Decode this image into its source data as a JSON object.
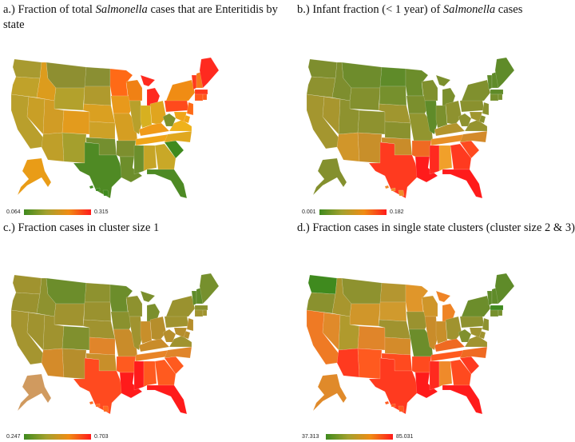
{
  "panels": [
    {
      "id": "a",
      "label": "a.)",
      "title_before": " Fraction of total ",
      "title_italic": "Salmonella",
      "title_after": " cases that are Enteritidis by state",
      "legend_min": "0.064",
      "legend_max": "0.315",
      "colors": {
        "WA": "#a89a30",
        "OR": "#c0a22a",
        "CA": "#b99f2c",
        "NV": "#c99f26",
        "ID": "#dc9c1d",
        "MT": "#8e8f31",
        "WY": "#b3a12c",
        "UT": "#d19c25",
        "AZ": "#bf9f29",
        "NM": "#a59f2d",
        "CO": "#e39b1d",
        "ND": "#8a8f33",
        "SD": "#b09a2d",
        "NE": "#daa021",
        "KS": "#cda127",
        "OK": "#748f2f",
        "TX": "#4f8a24",
        "MN": "#ff6a16",
        "IA": "#e8991b",
        "MO": "#d59e22",
        "AR": "#7d8f2e",
        "LA": "#6d8e2b",
        "WI": "#f08114",
        "IL": "#b8a02b",
        "MI": "#ff2a1f",
        "IN": "#d7b020",
        "OH": "#e0a51f",
        "KY": "#f09a18",
        "TN": "#f0a518",
        "MS": "#6c8f2c",
        "AL": "#c6a527",
        "GA": "#c9a827",
        "FL": "#4d8a24",
        "SC": "#3f8a1e",
        "NC": "#e0a81f",
        "VA": "#efb21b",
        "WV": "#7d912c",
        "PA": "#ff4a1c",
        "NY": "#f08c14",
        "VT": "#ff3a1c",
        "NH": "#f6781a",
        "ME": "#ff2a1f",
        "MA": "#ff3a1c",
        "CT": "#ff5a1a",
        "RI": "#ff5a1a",
        "NJ": "#ff6a16",
        "DE": "#f0a518",
        "MD": "#f0a518",
        "AK": "#e99c17",
        "HI": "#3f8a1e"
      }
    },
    {
      "id": "b",
      "label": "b.)",
      "title_before": "  Infant fraction (< 1 year) of ",
      "title_italic": "Salmonella",
      "title_after": " cases",
      "legend_min": "0.001",
      "legend_max": "0.182",
      "colors": {
        "WA": "#7e8e2e",
        "OR": "#8e922f",
        "CA": "#a4962f",
        "NV": "#a8962e",
        "ID": "#7e8e2e",
        "MT": "#6e8c2c",
        "WY": "#83902e",
        "UT": "#8e922f",
        "AZ": "#d1962a",
        "NM": "#c88f2a",
        "CO": "#8e922f",
        "ND": "#5f8b29",
        "SD": "#76902d",
        "NE": "#a0962f",
        "KS": "#8a912e",
        "OK": "#c98c2a",
        "TX": "#ff3a1f",
        "MN": "#6c8d2b",
        "IA": "#7b8f2d",
        "MO": "#92952f",
        "AR": "#ef6a22",
        "LA": "#ff1b1b",
        "WI": "#80902e",
        "IL": "#5f8b29",
        "MI": "#7b8f2d",
        "IN": "#7b902d",
        "OH": "#8e922f",
        "KY": "#b3942c",
        "TN": "#e88f26",
        "MS": "#ff2a1f",
        "AL": "#f1a02a",
        "GA": "#ff3a1f",
        "FL": "#ff1b1b",
        "SC": "#ff4a1f",
        "NC": "#d38a2a",
        "VA": "#95932f",
        "WV": "#8e922f",
        "PA": "#8a912e",
        "NY": "#80902e",
        "VT": "#5f8b29",
        "NH": "#5f8b29",
        "ME": "#5f8b29",
        "MA": "#5f8b29",
        "CT": "#76902d",
        "RI": "#76902d",
        "NJ": "#8a912e",
        "DE": "#8a912e",
        "MD": "#a0962f",
        "AK": "#84902e",
        "HI": "#ef8a2a"
      }
    },
    {
      "id": "c",
      "label": "c.)",
      "title_before": " Fraction cases in cluster size 1",
      "title_italic": "",
      "title_after": "",
      "legend_min": "0.247",
      "legend_max": "0.703",
      "colors": {
        "WA": "#a0932f",
        "OR": "#9a922f",
        "CA": "#a59530",
        "NV": "#a0932f",
        "ID": "#8e922f",
        "MT": "#6c8d2b",
        "WY": "#a0932f",
        "UT": "#a0932f",
        "AZ": "#d48b2a",
        "NM": "#b68e2c",
        "CO": "#80902e",
        "ND": "#8e922f",
        "SD": "#9a922f",
        "NE": "#a0932f",
        "KS": "#e0852a",
        "OK": "#c88f2a",
        "TX": "#ff4a1f",
        "MN": "#6c8d2b",
        "IA": "#8a912e",
        "MO": "#c98c2a",
        "AR": "#ff5a1f",
        "LA": "#ff1b1b",
        "WI": "#8e922f",
        "IL": "#a0932f",
        "MI": "#7b8f2d",
        "IN": "#c88f2a",
        "OH": "#b68e2c",
        "KY": "#c98c2a",
        "TN": "#e88426",
        "MS": "#ff1b1b",
        "AL": "#ff5a1f",
        "GA": "#ff5a1f",
        "FL": "#ff1b1b",
        "SC": "#ff5a1f",
        "NC": "#e0852a",
        "VA": "#a0932f",
        "WV": "#b68e2c",
        "PA": "#a0932f",
        "NY": "#9a922f",
        "VT": "#5f8b29",
        "NH": "#5f8b29",
        "ME": "#76902d",
        "MA": "#8a912e",
        "CT": "#a0932f",
        "RI": "#a0932f",
        "NJ": "#b68e2c",
        "DE": "#b68e2c",
        "MD": "#b68e2c",
        "AK": "#d09a5f",
        "HI": "#ff6a20"
      }
    },
    {
      "id": "d",
      "label": "d.)",
      "title_before": " Fraction cases in single state clusters (cluster size 2 & 3)",
      "title_italic": "",
      "title_after": "",
      "legend_min": "37.313",
      "legend_max": "85.031",
      "colors": {
        "WA": "#3f8a1e",
        "OR": "#8a912e",
        "CA": "#ef7a24",
        "NV": "#e08a2a",
        "ID": "#a8962e",
        "MT": "#8e922f",
        "WY": "#d0962a",
        "UT": "#b09a2d",
        "AZ": "#ff3a1f",
        "NM": "#ff5a1f",
        "CO": "#e0852a",
        "ND": "#b49630",
        "SD": "#d09a2d",
        "NE": "#a0932f",
        "KS": "#d48b2a",
        "OK": "#ff4a1f",
        "TX": "#ff3a1f",
        "MN": "#e0962a",
        "IA": "#9a922f",
        "MO": "#6c8d2b",
        "AR": "#ff4a1f",
        "LA": "#ff1b1b",
        "WI": "#cf962a",
        "IL": "#c98c2a",
        "MI": "#ef8426",
        "IN": "#c88f2a",
        "OH": "#a0932f",
        "KY": "#ef6a22",
        "TN": "#ff5a1f",
        "MS": "#ff2a1f",
        "AL": "#ef8a2a",
        "GA": "#ff4a1f",
        "FL": "#ff1b1b",
        "SC": "#ff3a1f",
        "NC": "#ef6a22",
        "VA": "#a0932f",
        "WV": "#80902e",
        "PA": "#8e922f",
        "NY": "#6c8d2b",
        "VT": "#5f8b29",
        "NH": "#5f8b29",
        "ME": "#5f8b29",
        "MA": "#3f8a1e",
        "CT": "#76902d",
        "RI": "#76902d",
        "NJ": "#8e922f",
        "DE": "#a0932f",
        "MD": "#a0932f",
        "AK": "#e08a2a",
        "HI": "#ff5a1f"
      }
    }
  ]
}
